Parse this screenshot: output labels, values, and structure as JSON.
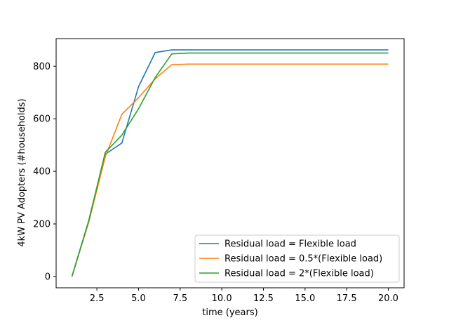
{
  "chart_data": {
    "type": "line",
    "title": "",
    "xlabel": "time (years)",
    "ylabel": "4kW PV Adopters (#households)",
    "xlim": [
      0.05,
      20.95
    ],
    "ylim": [
      -43,
      905
    ],
    "xticks": [
      2.5,
      5.0,
      7.5,
      10.0,
      12.5,
      15.0,
      17.5,
      20.0
    ],
    "xtick_labels": [
      "2.5",
      "5.0",
      "7.5",
      "10.0",
      "12.5",
      "15.0",
      "17.5",
      "20.0"
    ],
    "yticks": [
      0,
      200,
      400,
      600,
      800
    ],
    "ytick_labels": [
      "0",
      "200",
      "400",
      "600",
      "800"
    ],
    "grid": false,
    "legend_position": "bottom-right",
    "x": [
      1,
      2,
      3,
      4,
      5,
      6,
      7,
      8,
      9,
      10,
      11,
      12,
      13,
      14,
      15,
      16,
      17,
      18,
      19,
      20
    ],
    "series": [
      {
        "name": "Residual load = Flexible load",
        "color": "#1f77b4",
        "values": [
          0,
          210,
          465,
          508,
          722,
          852,
          862,
          862,
          862,
          862,
          862,
          862,
          862,
          862,
          862,
          862,
          862,
          862,
          862,
          862
        ]
      },
      {
        "name": "Residual load = 0.5*(Flexible load)",
        "color": "#ff7f0e",
        "values": [
          0,
          205,
          455,
          617,
          680,
          752,
          806,
          808,
          808,
          808,
          808,
          808,
          808,
          808,
          808,
          808,
          808,
          808,
          808,
          808
        ]
      },
      {
        "name": "Residual load = 2*(Flexible load)",
        "color": "#2ca02c",
        "values": [
          0,
          210,
          472,
          538,
          638,
          757,
          847,
          850,
          850,
          850,
          850,
          850,
          850,
          850,
          850,
          850,
          850,
          850,
          850,
          850
        ]
      }
    ]
  }
}
